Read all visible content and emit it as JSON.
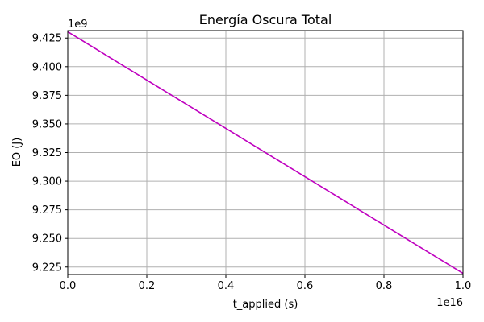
{
  "chart_data": {
    "type": "line",
    "title": "Energía Oscura Total",
    "xlabel": "t_applied (s)",
    "ylabel": "EO (J)",
    "x_offset_label": "1e16",
    "y_offset_label": "1e9",
    "x_scale": 1e+16,
    "y_scale": 1000000000.0,
    "xlim": [
      0,
      1e+16
    ],
    "ylim": [
      9218500000.0,
      9431500000.0
    ],
    "x_ticks": [
      0,
      2000000000000000.0,
      4000000000000000.0,
      6000000000000000.0,
      8000000000000000.0,
      1e+16
    ],
    "x_tick_labels": [
      "0.0",
      "0.2",
      "0.4",
      "0.6",
      "0.8",
      "1.0"
    ],
    "y_ticks": [
      9225000000.0,
      9250000000.0,
      9275000000.0,
      9300000000.0,
      9325000000.0,
      9350000000.0,
      9375000000.0,
      9400000000.0,
      9425000000.0
    ],
    "y_tick_labels": [
      "9.225",
      "9.250",
      "9.275",
      "9.300",
      "9.325",
      "9.350",
      "9.375",
      "9.400",
      "9.425"
    ],
    "grid": true,
    "series": [
      {
        "color": "#bf00bf",
        "x": [
          0,
          1e+16
        ],
        "y": [
          9430500000.0,
          9219500000.0
        ]
      }
    ]
  }
}
